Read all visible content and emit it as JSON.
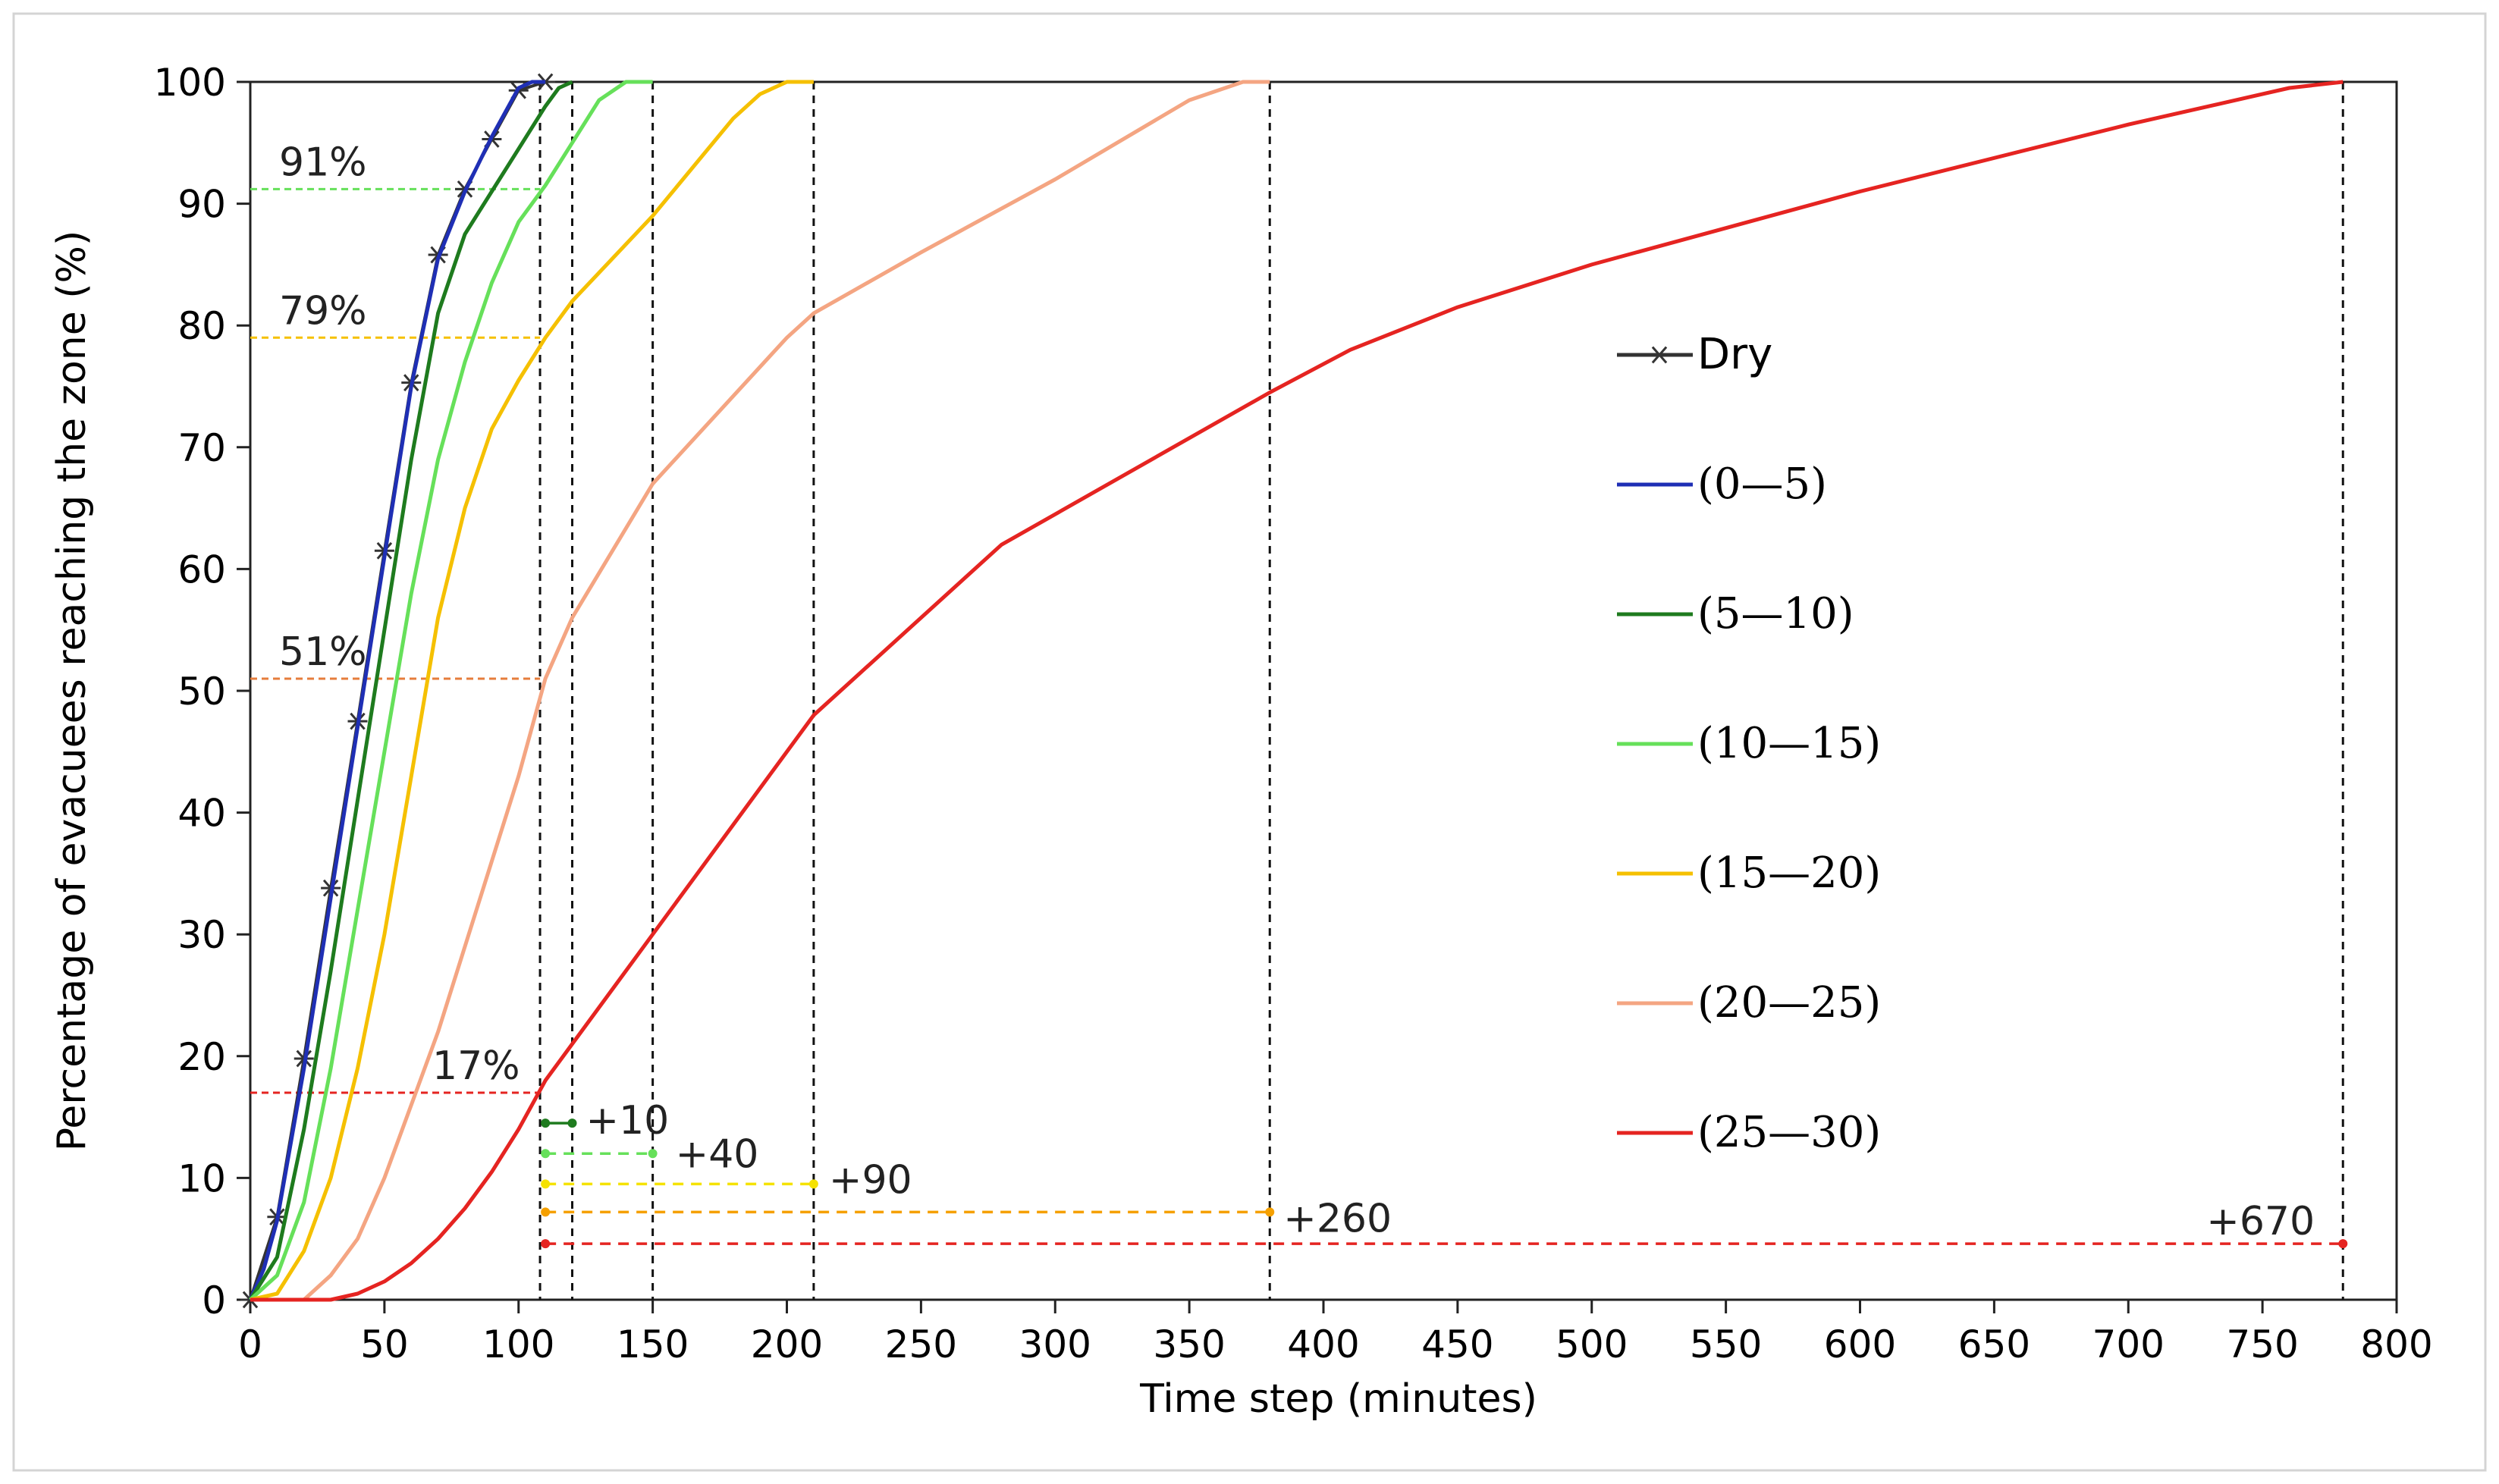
{
  "chart_data": {
    "type": "line",
    "xlabel": "Time step (minutes)",
    "ylabel": "Percentage of evacuees reaching the zone (%)",
    "xlim": [
      0,
      800
    ],
    "ylim": [
      0,
      100
    ],
    "xticks": [
      "0",
      "50",
      "100",
      "150",
      "200",
      "250",
      "300",
      "350",
      "400",
      "450",
      "500",
      "550",
      "600",
      "650",
      "700",
      "750",
      "800"
    ],
    "yticks": [
      "0",
      "10",
      "20",
      "30",
      "40",
      "50",
      "60",
      "70",
      "80",
      "90",
      "100"
    ],
    "grid": false,
    "legend_position": "right-center",
    "series": [
      {
        "name": "Dry",
        "color": "#333333",
        "marker": "asterisk",
        "x": [
          0,
          10,
          20,
          30,
          40,
          50,
          60,
          70,
          80,
          90,
          100,
          110
        ],
        "y": [
          0,
          6.8,
          19.8,
          33.8,
          47.5,
          61.5,
          75.3,
          85.8,
          91.2,
          95.3,
          99.3,
          100
        ]
      },
      {
        "name": "(0—5)",
        "color": "#1f2fb5",
        "x": [
          0,
          5,
          10,
          20,
          30,
          40,
          50,
          60,
          70,
          80,
          90,
          100,
          105,
          110
        ],
        "y": [
          0,
          2.5,
          6.5,
          19,
          33,
          47,
          61,
          75,
          85.5,
          91,
          95.5,
          99.5,
          100,
          100
        ]
      },
      {
        "name": "(5—10)",
        "color": "#1e7b1e",
        "x": [
          0,
          10,
          20,
          30,
          40,
          50,
          60,
          70,
          80,
          90,
          100,
          110,
          115,
          120
        ],
        "y": [
          0,
          3.5,
          14,
          27,
          41,
          55,
          69,
          81,
          87.5,
          91,
          94.5,
          98,
          99.5,
          100
        ]
      },
      {
        "name": "(10—15)",
        "color": "#66e05a",
        "x": [
          0,
          10,
          20,
          30,
          40,
          50,
          60,
          70,
          80,
          90,
          100,
          110,
          120,
          130,
          140,
          150
        ],
        "y": [
          0,
          2,
          8,
          19,
          32,
          45,
          58,
          69,
          77,
          83.5,
          88.5,
          91.5,
          95,
          98.5,
          100,
          100
        ]
      },
      {
        "name": "(15—20)",
        "color": "#f5c000",
        "x": [
          0,
          10,
          20,
          30,
          40,
          50,
          60,
          70,
          80,
          90,
          100,
          110,
          120,
          150,
          180,
          190,
          200,
          210
        ],
        "y": [
          0,
          0.5,
          4,
          10,
          19,
          30,
          43,
          56,
          65,
          71.5,
          75.5,
          79,
          82,
          89,
          97,
          99,
          100,
          100
        ]
      },
      {
        "name": "(20—25)",
        "color": "#f4a582",
        "x": [
          0,
          20,
          30,
          40,
          50,
          60,
          70,
          80,
          90,
          100,
          110,
          120,
          150,
          200,
          210,
          250,
          300,
          350,
          370,
          380
        ],
        "y": [
          0,
          0,
          2,
          5,
          10,
          16,
          22,
          29,
          36,
          43,
          51,
          56,
          67,
          79,
          81,
          86,
          92,
          98.5,
          100,
          100
        ]
      },
      {
        "name": "(25—30)",
        "color": "#e52421",
        "x": [
          0,
          30,
          40,
          50,
          60,
          70,
          80,
          90,
          100,
          110,
          150,
          210,
          280,
          380,
          410,
          450,
          500,
          600,
          700,
          760,
          780
        ],
        "y": [
          0,
          0,
          0.5,
          1.5,
          3,
          5,
          7.5,
          10.5,
          14,
          18,
          30,
          48,
          62,
          74.5,
          78,
          81.5,
          85,
          91,
          96.5,
          99.5,
          100
        ]
      }
    ],
    "annotations": [
      {
        "text": "91%",
        "y": 91.2,
        "color": "#66e05a",
        "x_from": 0,
        "x_to": 108
      },
      {
        "text": "79%",
        "y": 79,
        "color": "#f5c000",
        "x_from": 0,
        "x_to": 108
      },
      {
        "text": "51%",
        "y": 51,
        "color": "#e67d3c",
        "x_from": 0,
        "x_to": 108
      },
      {
        "text": "17%",
        "y": 17,
        "color": "#e52421",
        "x_from": 0,
        "x_to": 108
      }
    ],
    "reference_lines_x": [
      108,
      120,
      150,
      210,
      380,
      780
    ],
    "delays": [
      {
        "text": "+10",
        "y": 14.5,
        "x_from": 110,
        "x_to": 120,
        "color": "#1e7b1e"
      },
      {
        "text": "+40",
        "y": 12,
        "x_from": 110,
        "x_to": 150,
        "color": "#66e05a"
      },
      {
        "text": "+90",
        "y": 9.5,
        "x_from": 110,
        "x_to": 210,
        "color": "#f5e200"
      },
      {
        "text": "+260",
        "y": 7.2,
        "x_from": 110,
        "x_to": 380,
        "color": "#f5a000"
      },
      {
        "text": "+670",
        "y": 4.6,
        "x_from": 110,
        "x_to": 780,
        "color": "#e52421"
      }
    ]
  }
}
